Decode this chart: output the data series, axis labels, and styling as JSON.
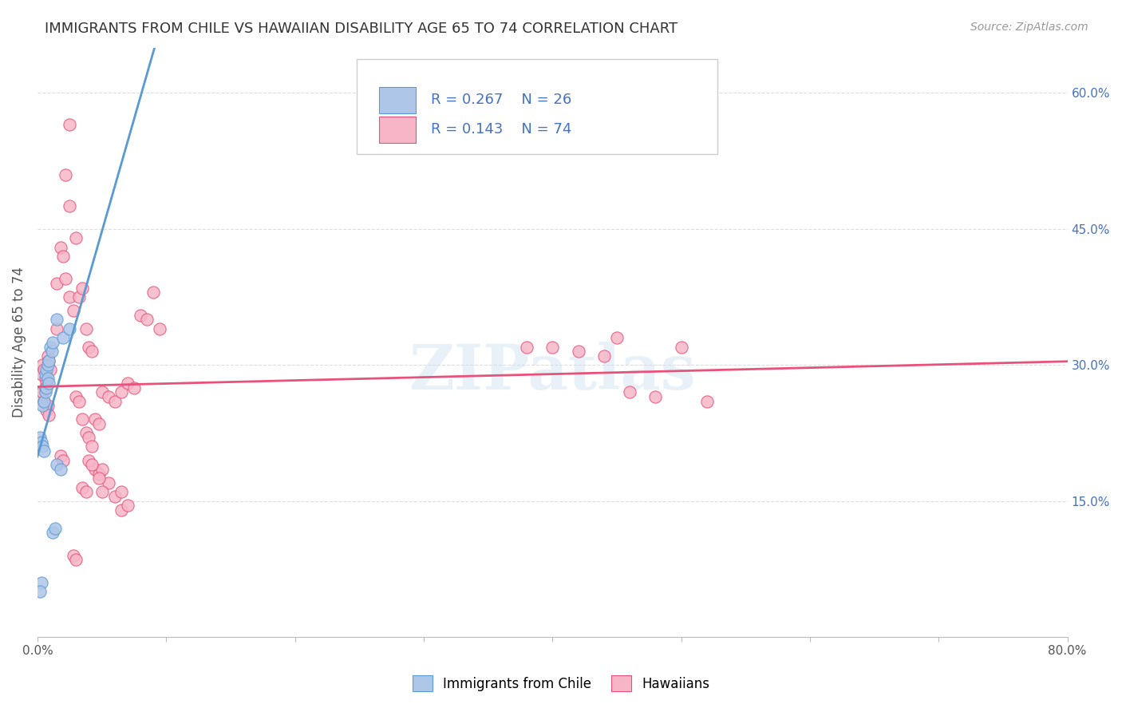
{
  "title": "IMMIGRANTS FROM CHILE VS HAWAIIAN DISABILITY AGE 65 TO 74 CORRELATION CHART",
  "source": "Source: ZipAtlas.com",
  "ylabel": "Disability Age 65 to 74",
  "xlim": [
    0.0,
    0.8
  ],
  "ylim": [
    0.0,
    0.65
  ],
  "xticks": [
    0.0,
    0.1,
    0.2,
    0.3,
    0.4,
    0.5,
    0.6,
    0.7,
    0.8
  ],
  "xtick_labels": [
    "0.0%",
    "",
    "",
    "",
    "",
    "",
    "",
    "",
    "80.0%"
  ],
  "ytick_labels_right": [
    "60.0%",
    "45.0%",
    "30.0%",
    "15.0%"
  ],
  "ytick_positions_right": [
    0.6,
    0.45,
    0.3,
    0.15
  ],
  "color_chile": "#aec6e8",
  "color_hawaii": "#f7b6c8",
  "line_color_chile": "#5b9bd5",
  "line_color_hawaii": "#e8527a",
  "watermark": "ZIPatlas",
  "chile_points": [
    [
      0.002,
      0.22
    ],
    [
      0.003,
      0.215
    ],
    [
      0.004,
      0.21
    ],
    [
      0.005,
      0.205
    ],
    [
      0.004,
      0.255
    ],
    [
      0.005,
      0.26
    ],
    [
      0.006,
      0.27
    ],
    [
      0.007,
      0.275
    ],
    [
      0.006,
      0.29
    ],
    [
      0.007,
      0.295
    ],
    [
      0.008,
      0.3
    ],
    [
      0.009,
      0.305
    ],
    [
      0.008,
      0.285
    ],
    [
      0.009,
      0.28
    ],
    [
      0.01,
      0.32
    ],
    [
      0.011,
      0.315
    ],
    [
      0.012,
      0.325
    ],
    [
      0.015,
      0.35
    ],
    [
      0.02,
      0.33
    ],
    [
      0.025,
      0.34
    ],
    [
      0.015,
      0.19
    ],
    [
      0.018,
      0.185
    ],
    [
      0.012,
      0.115
    ],
    [
      0.014,
      0.12
    ],
    [
      0.003,
      0.06
    ],
    [
      0.002,
      0.05
    ]
  ],
  "hawaii_points": [
    [
      0.003,
      0.29
    ],
    [
      0.004,
      0.3
    ],
    [
      0.005,
      0.295
    ],
    [
      0.006,
      0.285
    ],
    [
      0.007,
      0.28
    ],
    [
      0.008,
      0.31
    ],
    [
      0.009,
      0.305
    ],
    [
      0.01,
      0.295
    ],
    [
      0.003,
      0.265
    ],
    [
      0.004,
      0.27
    ],
    [
      0.005,
      0.26
    ],
    [
      0.006,
      0.275
    ],
    [
      0.007,
      0.25
    ],
    [
      0.008,
      0.255
    ],
    [
      0.009,
      0.245
    ],
    [
      0.015,
      0.39
    ],
    [
      0.018,
      0.43
    ],
    [
      0.02,
      0.42
    ],
    [
      0.022,
      0.395
    ],
    [
      0.025,
      0.375
    ],
    [
      0.028,
      0.36
    ],
    [
      0.03,
      0.44
    ],
    [
      0.032,
      0.375
    ],
    [
      0.035,
      0.385
    ],
    [
      0.038,
      0.34
    ],
    [
      0.04,
      0.32
    ],
    [
      0.042,
      0.315
    ],
    [
      0.022,
      0.51
    ],
    [
      0.025,
      0.475
    ],
    [
      0.018,
      0.2
    ],
    [
      0.02,
      0.195
    ],
    [
      0.015,
      0.34
    ],
    [
      0.03,
      0.265
    ],
    [
      0.032,
      0.26
    ],
    [
      0.035,
      0.24
    ],
    [
      0.038,
      0.225
    ],
    [
      0.04,
      0.22
    ],
    [
      0.042,
      0.21
    ],
    [
      0.045,
      0.24
    ],
    [
      0.048,
      0.235
    ],
    [
      0.05,
      0.27
    ],
    [
      0.055,
      0.265
    ],
    [
      0.06,
      0.26
    ],
    [
      0.065,
      0.27
    ],
    [
      0.07,
      0.28
    ],
    [
      0.075,
      0.275
    ],
    [
      0.045,
      0.185
    ],
    [
      0.048,
      0.18
    ],
    [
      0.05,
      0.185
    ],
    [
      0.055,
      0.17
    ],
    [
      0.06,
      0.155
    ],
    [
      0.065,
      0.16
    ],
    [
      0.04,
      0.195
    ],
    [
      0.042,
      0.19
    ],
    [
      0.028,
      0.09
    ],
    [
      0.03,
      0.085
    ],
    [
      0.035,
      0.165
    ],
    [
      0.038,
      0.16
    ],
    [
      0.048,
      0.175
    ],
    [
      0.05,
      0.16
    ],
    [
      0.065,
      0.14
    ],
    [
      0.07,
      0.145
    ],
    [
      0.025,
      0.565
    ],
    [
      0.08,
      0.355
    ],
    [
      0.085,
      0.35
    ],
    [
      0.09,
      0.38
    ],
    [
      0.095,
      0.34
    ],
    [
      0.38,
      0.32
    ],
    [
      0.4,
      0.32
    ],
    [
      0.42,
      0.315
    ],
    [
      0.44,
      0.31
    ],
    [
      0.45,
      0.33
    ],
    [
      0.5,
      0.32
    ],
    [
      0.46,
      0.27
    ],
    [
      0.48,
      0.265
    ],
    [
      0.52,
      0.26
    ]
  ],
  "background_color": "#ffffff",
  "grid_color": "#dddddd"
}
